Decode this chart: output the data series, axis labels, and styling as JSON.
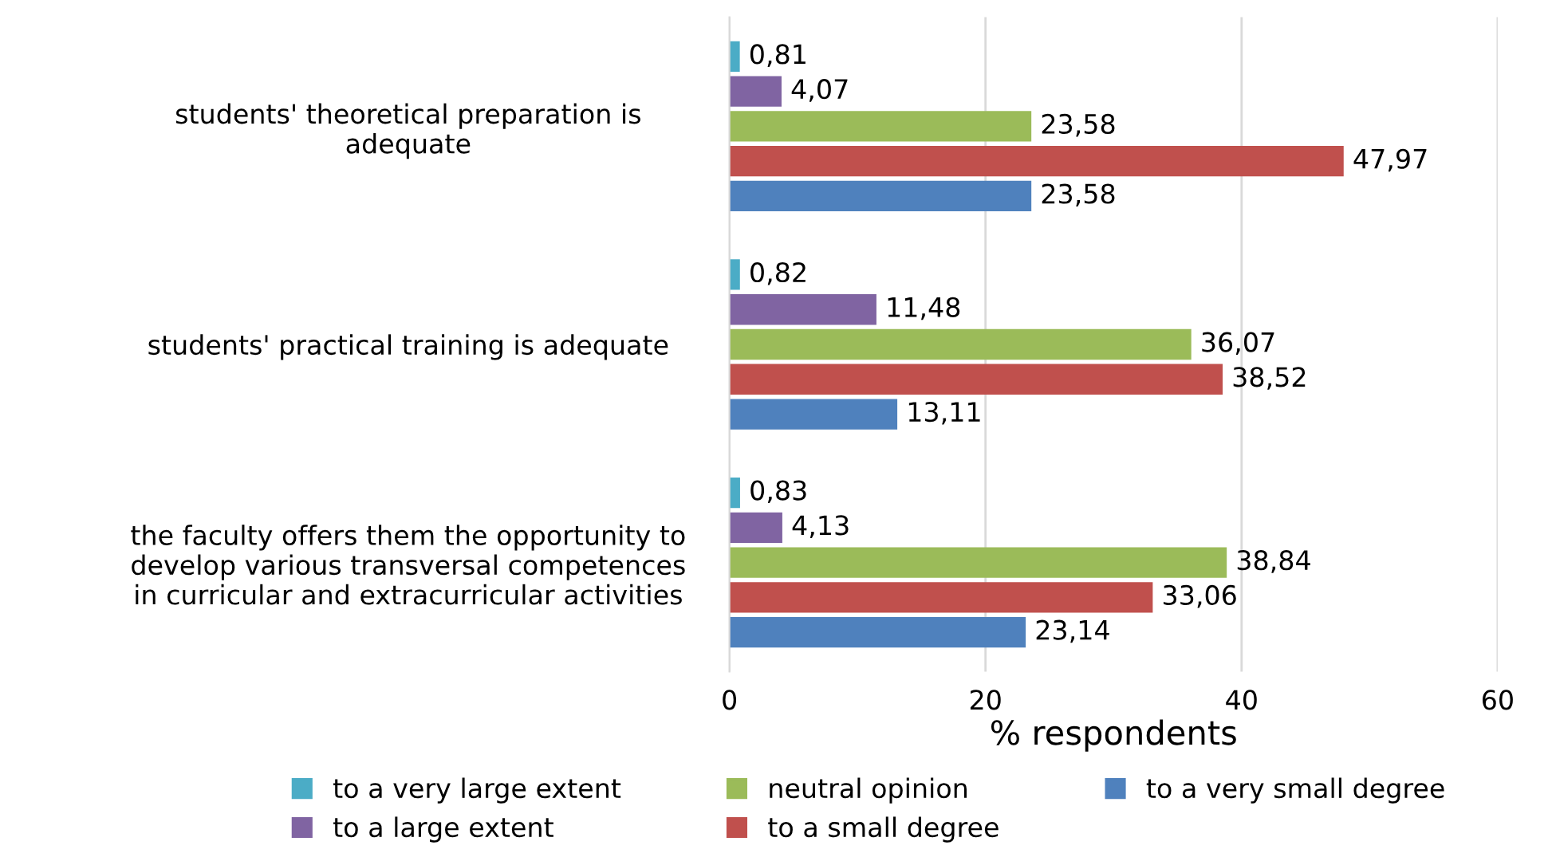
{
  "chart_data": {
    "type": "bar",
    "orientation": "horizontal",
    "xlabel": "% respondents",
    "categories": [
      "students' theoretical preparation is\nadequate",
      "students' practical training is adequate",
      "the faculty offers them the opportunity to\ndevelop various transversal competences\nin curricular and extracurricular activities"
    ],
    "series": [
      {
        "name": "to a very large extent",
        "color": "#4bacc6",
        "values": [
          0.81,
          0.82,
          0.83
        ],
        "value_labels": [
          "0,81",
          "0,82",
          "0,83"
        ]
      },
      {
        "name": "to a large extent",
        "color": "#8064a2",
        "values": [
          4.07,
          11.48,
          4.13
        ],
        "value_labels": [
          "4,07",
          "11,48",
          "4,13"
        ]
      },
      {
        "name": "neutral opinion",
        "color": "#9bbb59",
        "values": [
          23.58,
          36.07,
          38.84
        ],
        "value_labels": [
          "23,58",
          "36,07",
          "38,84"
        ]
      },
      {
        "name": "to a small degree",
        "color": "#c0504d",
        "values": [
          47.97,
          38.52,
          33.06
        ],
        "value_labels": [
          "47,97",
          "38,52",
          "33,06"
        ]
      },
      {
        "name": "to a very small degree",
        "color": "#4f81bd",
        "values": [
          23.58,
          13.11,
          23.14
        ],
        "value_labels": [
          "23,58",
          "13,11",
          "23,14"
        ]
      }
    ],
    "xlim": [
      0,
      60
    ],
    "xticks": [
      0,
      20,
      40,
      60
    ],
    "grid": "x",
    "legend": "bottom"
  }
}
